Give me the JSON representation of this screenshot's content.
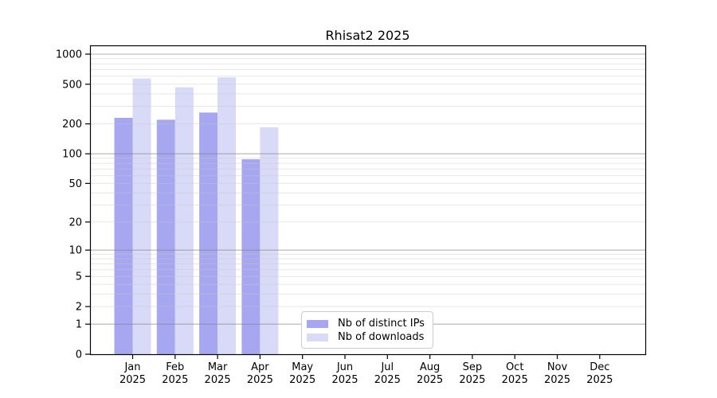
{
  "title": "Rhisat2 2025",
  "chart_data": {
    "type": "bar",
    "title": "Rhisat2 2025",
    "categories": [
      "Jan",
      "Feb",
      "Mar",
      "Apr",
      "May",
      "Jun",
      "Jul",
      "Aug",
      "Sep",
      "Oct",
      "Nov",
      "Dec"
    ],
    "x_tick_year": "2025",
    "series": [
      {
        "name": "Nb of distinct IPs",
        "color": "#a6a6f1",
        "values": [
          230,
          220,
          260,
          88,
          null,
          null,
          null,
          null,
          null,
          null,
          null,
          null
        ]
      },
      {
        "name": "Nb of downloads",
        "color": "#d9d9f8",
        "values": [
          570,
          465,
          585,
          185,
          null,
          null,
          null,
          null,
          null,
          null,
          null,
          null
        ]
      }
    ],
    "y_axis": {
      "scale": "log1p",
      "ylim": [
        0,
        1200
      ],
      "tick_values": [
        0,
        1,
        2,
        5,
        10,
        20,
        50,
        100,
        200,
        500,
        1000
      ],
      "tick_labels": [
        "0",
        "1",
        "2",
        "5",
        "10",
        "20",
        "50",
        "100",
        "200",
        "500",
        "1000"
      ],
      "grid_major_values": [
        1,
        10,
        100,
        1000
      ],
      "grid_minor_values": [
        2,
        3,
        4,
        5,
        6,
        7,
        8,
        9,
        20,
        30,
        40,
        50,
        60,
        70,
        80,
        90,
        200,
        300,
        400,
        500,
        600,
        700,
        800,
        900
      ]
    },
    "legend": {
      "position": "lower center",
      "items": [
        "Nb of distinct IPs",
        "Nb of downloads"
      ]
    },
    "colors": {
      "bar_distinct_ips": "#a6a6f1",
      "bar_downloads": "#d9d9f8",
      "grid_major": "#808080",
      "grid_minor": "#c8c8c8",
      "axis_frame": "#000000",
      "text": "#000000",
      "legend_border": "#cccccc"
    },
    "grid": true
  }
}
